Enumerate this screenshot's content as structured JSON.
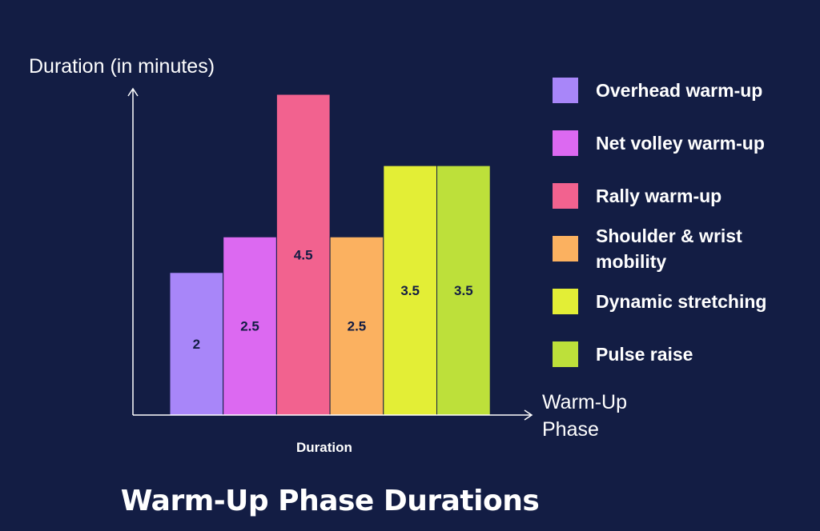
{
  "chart_data": {
    "type": "bar",
    "title": "Warm-Up Phase Durations",
    "ylabel": "Duration (in minutes)",
    "xlabel": "Warm-Up Phase",
    "category_label": "Duration",
    "categories": [
      "Overhead warm-up",
      "Net volley warm-up",
      "Rally warm-up",
      "Shoulder & wrist mobility",
      "Dynamic stretching",
      "Pulse raise"
    ],
    "values": [
      2,
      2.5,
      4.5,
      2.5,
      3.5,
      3.5
    ],
    "value_labels": [
      "2",
      "2.5",
      "4.5",
      "2.5",
      "3.5",
      "3.5"
    ],
    "colors": [
      "#a886f9",
      "#dc69f1",
      "#f2628f",
      "#fbb160",
      "#e3ee36",
      "#bde03a"
    ],
    "ylim": [
      0,
      4.5
    ],
    "grid": false,
    "legend_position": "right"
  }
}
